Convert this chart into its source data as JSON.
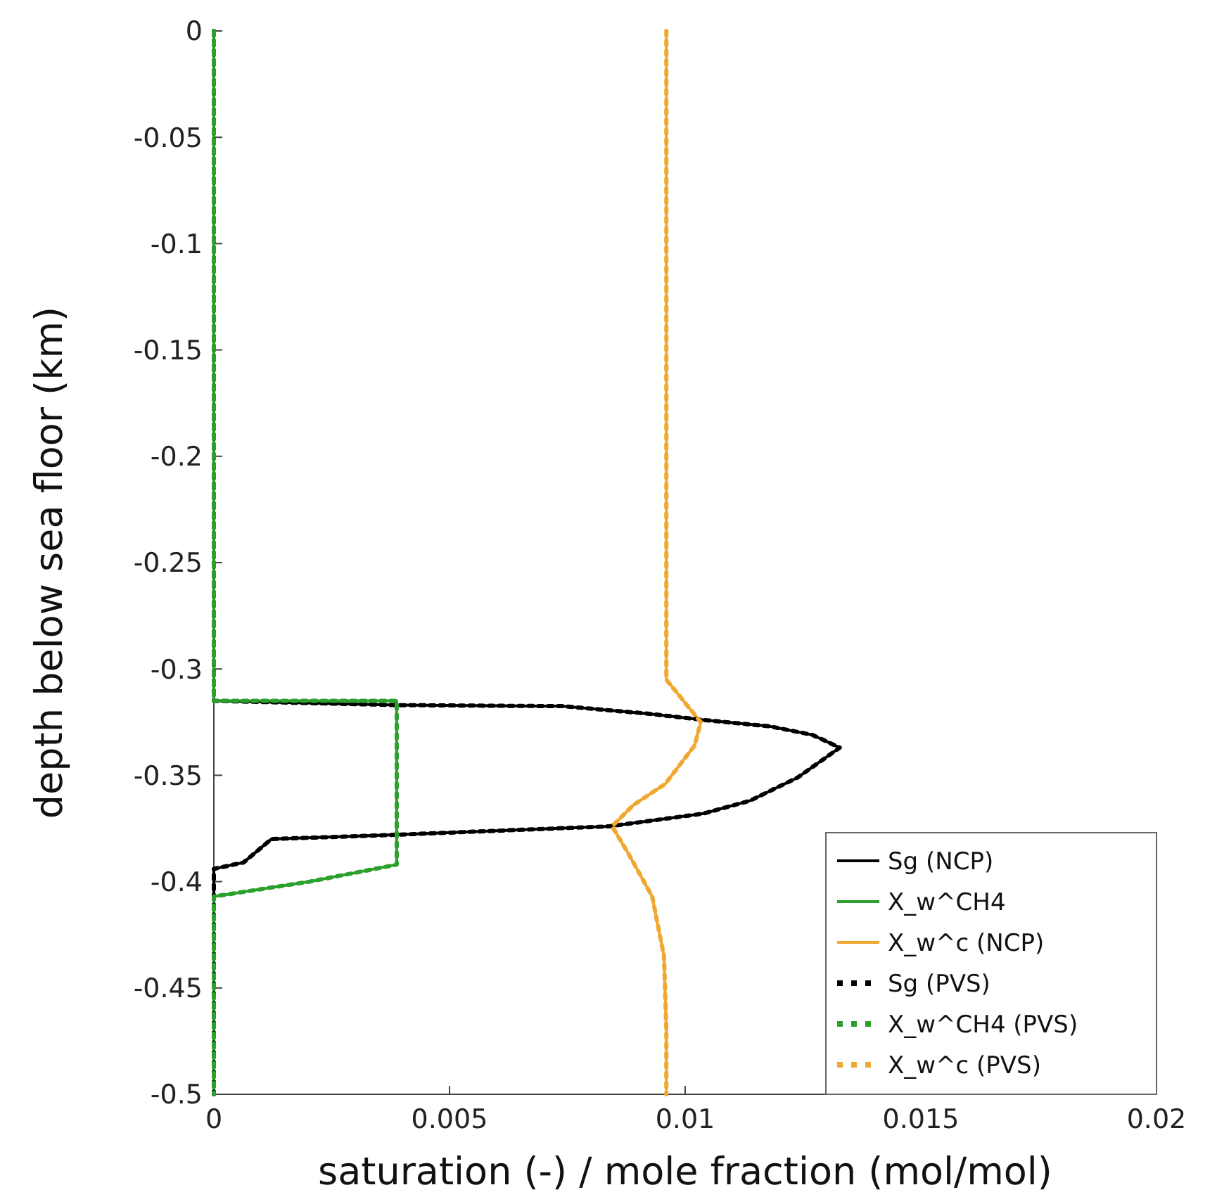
{
  "chart_data": {
    "type": "line",
    "xlabel": "saturation (-) / mole fraction (mol/mol)",
    "ylabel": "depth below sea floor (km)",
    "xlim": [
      0,
      0.02
    ],
    "xticks": [
      0,
      0.005,
      0.01,
      0.015,
      0.02
    ],
    "ylim": [
      -0.5,
      0
    ],
    "yticks": [
      -0.5,
      -0.45,
      -0.4,
      -0.35,
      -0.3,
      -0.25,
      -0.2,
      -0.15,
      -0.1,
      -0.05,
      0
    ],
    "grid": false,
    "legend": "bottom right",
    "series": [
      {
        "name": "Sg (NCP)",
        "color": "#000000",
        "line_style": "solid",
        "x": [
          0,
          0,
          0.0039,
          0.0074,
          0.0092,
          0.0104,
          0.0118,
          0.0127,
          0.01328,
          0.01239,
          0.01137,
          0.01039,
          0.00839,
          0.00382,
          0.00122,
          0.00063,
          0,
          0
        ],
        "values": [
          0,
          -0.315,
          -0.317,
          -0.3175,
          -0.321,
          -0.324,
          -0.327,
          -0.331,
          -0.337,
          -0.351,
          -0.362,
          -0.368,
          -0.374,
          -0.378,
          -0.38,
          -0.391,
          -0.394,
          -0.5
        ]
      },
      {
        "name": "X_w^CH4",
        "color": "#2ca02c",
        "line_style": "solid",
        "x": [
          0,
          0,
          0.00388,
          0.00388,
          0.00203,
          0,
          0
        ],
        "values": [
          0,
          -0.315,
          -0.315,
          -0.392,
          -0.4,
          -0.407,
          -0.5
        ]
      },
      {
        "name": "X_w^c (NCP)",
        "color": "#f0a830",
        "line_style": "solid",
        "x": [
          0.0096,
          0.0096,
          0.01,
          0.01033,
          0.0102,
          0.00958,
          0.0089,
          0.00845,
          0.0088,
          0.0093,
          0.00955,
          0.0096,
          0.0096
        ],
        "values": [
          0,
          -0.305,
          -0.316,
          -0.325,
          -0.336,
          -0.354,
          -0.364,
          -0.374,
          -0.387,
          -0.407,
          -0.435,
          -0.47,
          -0.5
        ]
      },
      {
        "name": "Sg (PVS)",
        "color": "#000000",
        "line_style": "dotted",
        "x": [
          0,
          0,
          0.0039,
          0.0074,
          0.0092,
          0.0104,
          0.0118,
          0.0127,
          0.01328,
          0.01239,
          0.01137,
          0.01039,
          0.00839,
          0.00382,
          0.00122,
          0.00063,
          0,
          0
        ],
        "values": [
          0,
          -0.315,
          -0.317,
          -0.3175,
          -0.321,
          -0.324,
          -0.327,
          -0.331,
          -0.337,
          -0.351,
          -0.362,
          -0.368,
          -0.374,
          -0.378,
          -0.38,
          -0.391,
          -0.394,
          -0.5
        ]
      },
      {
        "name": "X_w^CH4 (PVS)",
        "color": "#2ca02c",
        "line_style": "dotted",
        "x": [
          0,
          0,
          0.00388,
          0.00388,
          0.00203,
          0,
          0
        ],
        "values": [
          0,
          -0.315,
          -0.315,
          -0.392,
          -0.4,
          -0.407,
          -0.5
        ]
      },
      {
        "name": "X_w^c (PVS)",
        "color": "#f0a830",
        "line_style": "dotted",
        "x": [
          0.0096,
          0.0096,
          0.01,
          0.01033,
          0.0102,
          0.00958,
          0.0089,
          0.00845,
          0.0088,
          0.0093,
          0.00955,
          0.0096,
          0.0096
        ],
        "values": [
          0,
          -0.305,
          -0.316,
          -0.325,
          -0.336,
          -0.354,
          -0.364,
          -0.374,
          -0.387,
          -0.407,
          -0.435,
          -0.47,
          -0.5
        ]
      }
    ]
  }
}
